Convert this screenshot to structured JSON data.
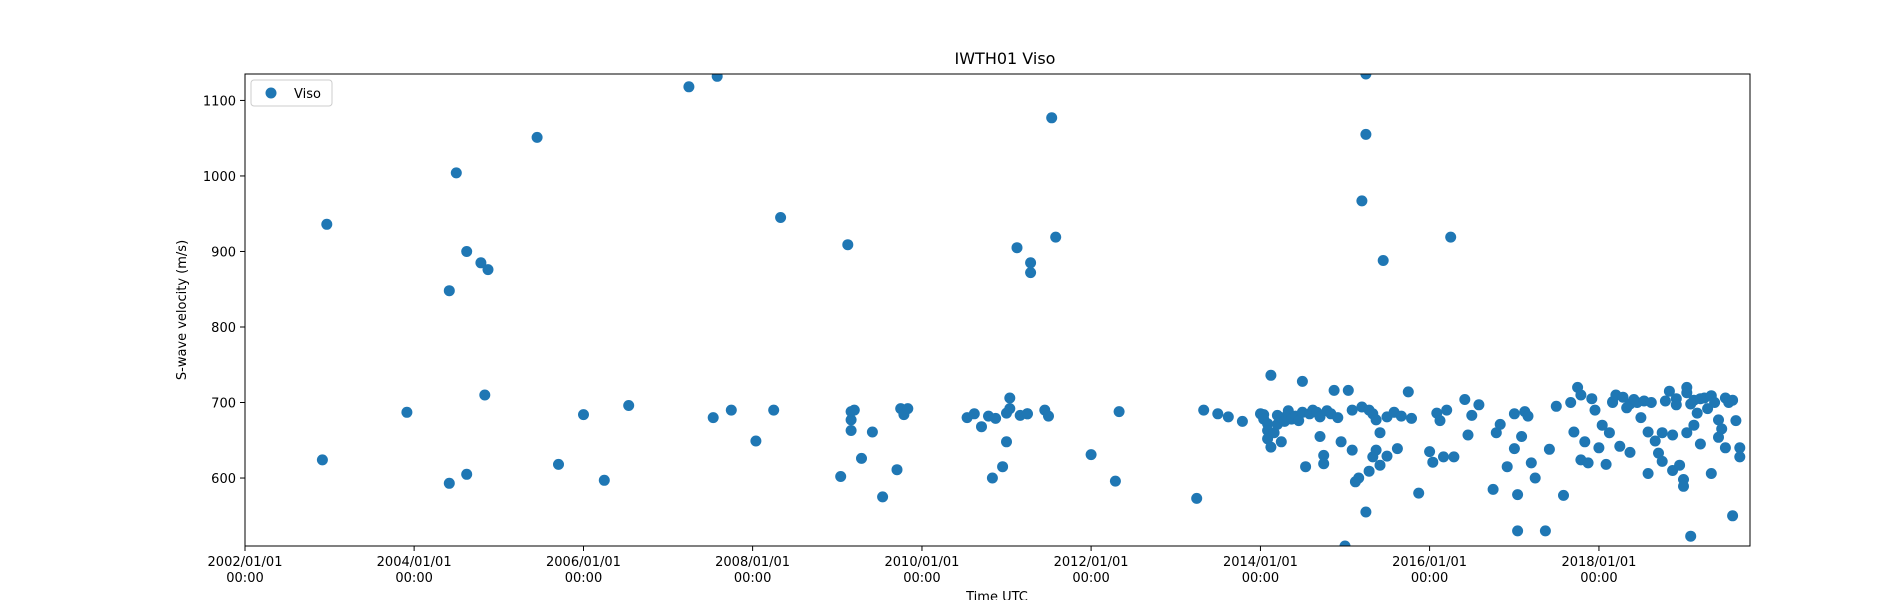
{
  "chart_data": {
    "type": "scatter",
    "title": "IWTH01 Viso",
    "xlabel": "Time UTC",
    "ylabel": "S-wave velocity (m/s)",
    "xlim": [
      "2002-01-01",
      "2019-10-15"
    ],
    "ylim": [
      510,
      1135
    ],
    "x_ticks": [
      {
        "value": "2002-01-01",
        "line1": "2002/01/01",
        "line2": "00:00"
      },
      {
        "value": "2004-01-01",
        "line1": "2004/01/01",
        "line2": "00:00"
      },
      {
        "value": "2006-01-01",
        "line1": "2006/01/01",
        "line2": "00:00"
      },
      {
        "value": "2008-01-01",
        "line1": "2008/01/01",
        "line2": "00:00"
      },
      {
        "value": "2010-01-01",
        "line1": "2010/01/01",
        "line2": "00:00"
      },
      {
        "value": "2012-01-01",
        "line1": "2012/01/01",
        "line2": "00:00"
      },
      {
        "value": "2014-01-01",
        "line1": "2014/01/01",
        "line2": "00:00"
      },
      {
        "value": "2016-01-01",
        "line1": "2016/01/01",
        "line2": "00:00"
      },
      {
        "value": "2018-01-01",
        "line1": "2018/01/01",
        "line2": "00:00"
      }
    ],
    "y_ticks": [
      600,
      700,
      800,
      900,
      1000,
      1100
    ],
    "grid": false,
    "legend": {
      "position": "top-left",
      "entries": [
        "Viso"
      ]
    },
    "color": "#1f77b4",
    "series": [
      {
        "name": "Viso",
        "points": [
          [
            "2002-12-01",
            624
          ],
          [
            "2002-12-20",
            936
          ],
          [
            "2003-12-01",
            687
          ],
          [
            "2004-06-01",
            593
          ],
          [
            "2004-06-01",
            848
          ],
          [
            "2004-07-01",
            1004
          ],
          [
            "2004-08-15",
            605
          ],
          [
            "2004-08-15",
            900
          ],
          [
            "2004-10-15",
            885
          ],
          [
            "2004-11-01",
            710
          ],
          [
            "2004-11-15",
            876
          ],
          [
            "2005-06-15",
            1051
          ],
          [
            "2005-09-15",
            618
          ],
          [
            "2006-01-01",
            684
          ],
          [
            "2006-04-01",
            597
          ],
          [
            "2006-07-15",
            696
          ],
          [
            "2007-04-01",
            1118
          ],
          [
            "2007-07-15",
            680
          ],
          [
            "2007-08-01",
            1132
          ],
          [
            "2007-10-01",
            690
          ],
          [
            "2008-01-15",
            649
          ],
          [
            "2008-04-01",
            690
          ],
          [
            "2008-05-01",
            945
          ],
          [
            "2009-01-15",
            602
          ],
          [
            "2009-02-15",
            909
          ],
          [
            "2009-03-01",
            663
          ],
          [
            "2009-03-01",
            677
          ],
          [
            "2009-03-01",
            688
          ],
          [
            "2009-03-15",
            690
          ],
          [
            "2009-04-15",
            626
          ],
          [
            "2009-06-01",
            661
          ],
          [
            "2009-07-15",
            575
          ],
          [
            "2009-09-15",
            611
          ],
          [
            "2009-10-01",
            692
          ],
          [
            "2009-10-15",
            684
          ],
          [
            "2009-11-01",
            692
          ],
          [
            "2010-07-15",
            680
          ],
          [
            "2010-08-15",
            685
          ],
          [
            "2010-09-15",
            668
          ],
          [
            "2010-10-15",
            682
          ],
          [
            "2010-11-01",
            600
          ],
          [
            "2010-11-15",
            679
          ],
          [
            "2010-12-15",
            615
          ],
          [
            "2011-01-01",
            648
          ],
          [
            "2011-01-01",
            686
          ],
          [
            "2011-01-15",
            692
          ],
          [
            "2011-01-15",
            706
          ],
          [
            "2011-02-15",
            905
          ],
          [
            "2011-03-01",
            683
          ],
          [
            "2011-04-01",
            685
          ],
          [
            "2011-04-01",
            685
          ],
          [
            "2011-04-15",
            872
          ],
          [
            "2011-04-15",
            885
          ],
          [
            "2011-06-15",
            690
          ],
          [
            "2011-07-01",
            682
          ],
          [
            "2011-07-15",
            1077
          ],
          [
            "2011-08-01",
            919
          ],
          [
            "2012-01-01",
            631
          ],
          [
            "2012-04-15",
            596
          ],
          [
            "2012-05-01",
            688
          ],
          [
            "2013-04-01",
            573
          ],
          [
            "2013-05-01",
            690
          ],
          [
            "2013-07-01",
            685
          ],
          [
            "2013-08-15",
            681
          ],
          [
            "2013-10-15",
            675
          ],
          [
            "2014-01-01",
            685
          ],
          [
            "2014-01-15",
            684
          ],
          [
            "2014-01-15",
            678
          ],
          [
            "2014-02-01",
            672
          ],
          [
            "2014-02-01",
            663
          ],
          [
            "2014-02-01",
            652
          ],
          [
            "2014-02-15",
            641
          ],
          [
            "2014-02-15",
            736
          ],
          [
            "2014-03-01",
            660
          ],
          [
            "2014-03-15",
            683
          ],
          [
            "2014-03-15",
            671
          ],
          [
            "2014-04-01",
            648
          ],
          [
            "2014-04-01",
            680
          ],
          [
            "2014-04-15",
            675
          ],
          [
            "2014-05-01",
            685
          ],
          [
            "2014-05-01",
            689
          ],
          [
            "2014-05-15",
            678
          ],
          [
            "2014-06-01",
            682
          ],
          [
            "2014-06-15",
            676
          ],
          [
            "2014-07-01",
            687
          ],
          [
            "2014-07-01",
            728
          ],
          [
            "2014-07-15",
            615
          ],
          [
            "2014-08-01",
            685
          ],
          [
            "2014-08-15",
            690
          ],
          [
            "2014-09-01",
            687
          ],
          [
            "2014-09-15",
            681
          ],
          [
            "2014-09-15",
            655
          ],
          [
            "2014-10-01",
            630
          ],
          [
            "2014-10-01",
            619
          ],
          [
            "2014-10-15",
            689
          ],
          [
            "2014-11-01",
            685
          ],
          [
            "2014-11-15",
            716
          ],
          [
            "2014-12-01",
            680
          ],
          [
            "2014-12-15",
            648
          ],
          [
            "2015-01-01",
            510
          ],
          [
            "2015-01-15",
            716
          ],
          [
            "2015-02-01",
            690
          ],
          [
            "2015-02-01",
            637
          ],
          [
            "2015-02-15",
            595
          ],
          [
            "2015-03-01",
            600
          ],
          [
            "2015-03-15",
            694
          ],
          [
            "2015-03-15",
            967
          ],
          [
            "2015-04-01",
            1055
          ],
          [
            "2015-04-01",
            1135
          ],
          [
            "2015-04-01",
            555
          ],
          [
            "2015-04-15",
            690
          ],
          [
            "2015-04-15",
            609
          ],
          [
            "2015-05-01",
            685
          ],
          [
            "2015-05-01",
            628
          ],
          [
            "2015-05-15",
            677
          ],
          [
            "2015-05-15",
            637
          ],
          [
            "2015-06-01",
            660
          ],
          [
            "2015-06-01",
            617
          ],
          [
            "2015-06-15",
            888
          ],
          [
            "2015-07-01",
            681
          ],
          [
            "2015-07-01",
            629
          ],
          [
            "2015-08-01",
            687
          ],
          [
            "2015-08-15",
            639
          ],
          [
            "2015-09-01",
            682
          ],
          [
            "2015-10-01",
            714
          ],
          [
            "2015-10-15",
            679
          ],
          [
            "2015-11-15",
            580
          ],
          [
            "2016-01-01",
            635
          ],
          [
            "2016-01-15",
            621
          ],
          [
            "2016-02-01",
            686
          ],
          [
            "2016-02-15",
            676
          ],
          [
            "2016-03-01",
            628
          ],
          [
            "2016-03-15",
            690
          ],
          [
            "2016-04-01",
            919
          ],
          [
            "2016-04-15",
            628
          ],
          [
            "2016-06-01",
            704
          ],
          [
            "2016-06-15",
            657
          ],
          [
            "2016-07-01",
            683
          ],
          [
            "2016-08-01",
            697
          ],
          [
            "2016-10-01",
            585
          ],
          [
            "2016-10-15",
            660
          ],
          [
            "2016-11-01",
            671
          ],
          [
            "2016-12-01",
            615
          ],
          [
            "2017-01-01",
            685
          ],
          [
            "2017-01-01",
            639
          ],
          [
            "2017-01-15",
            530
          ],
          [
            "2017-01-15",
            578
          ],
          [
            "2017-02-01",
            655
          ],
          [
            "2017-02-15",
            688
          ],
          [
            "2017-03-01",
            682
          ],
          [
            "2017-03-15",
            620
          ],
          [
            "2017-04-01",
            600
          ],
          [
            "2017-05-15",
            530
          ],
          [
            "2017-06-01",
            638
          ],
          [
            "2017-07-01",
            695
          ],
          [
            "2017-08-01",
            577
          ],
          [
            "2017-09-01",
            700
          ],
          [
            "2017-09-15",
            661
          ],
          [
            "2017-10-01",
            720
          ],
          [
            "2017-10-15",
            710
          ],
          [
            "2017-10-15",
            624
          ],
          [
            "2017-11-01",
            648
          ],
          [
            "2017-11-15",
            620
          ],
          [
            "2017-12-01",
            705
          ],
          [
            "2017-12-15",
            690
          ],
          [
            "2018-01-01",
            640
          ],
          [
            "2018-01-15",
            670
          ],
          [
            "2018-02-01",
            618
          ],
          [
            "2018-02-15",
            660
          ],
          [
            "2018-03-01",
            701
          ],
          [
            "2018-03-01",
            700
          ],
          [
            "2018-03-15",
            710
          ],
          [
            "2018-04-01",
            642
          ],
          [
            "2018-04-15",
            707
          ],
          [
            "2018-05-01",
            693
          ],
          [
            "2018-05-15",
            634
          ],
          [
            "2018-05-15",
            698
          ],
          [
            "2018-06-01",
            704
          ],
          [
            "2018-06-15",
            700
          ],
          [
            "2018-07-01",
            680
          ],
          [
            "2018-07-15",
            702
          ],
          [
            "2018-08-01",
            661
          ],
          [
            "2018-08-01",
            606
          ],
          [
            "2018-08-15",
            700
          ],
          [
            "2018-09-01",
            649
          ],
          [
            "2018-09-15",
            633
          ],
          [
            "2018-10-01",
            622
          ],
          [
            "2018-10-01",
            660
          ],
          [
            "2018-10-15",
            702
          ],
          [
            "2018-11-01",
            715
          ],
          [
            "2018-11-15",
            610
          ],
          [
            "2018-11-15",
            657
          ],
          [
            "2018-12-01",
            705
          ],
          [
            "2018-12-01",
            697
          ],
          [
            "2018-12-15",
            617
          ],
          [
            "2019-01-01",
            598
          ],
          [
            "2019-01-01",
            589
          ],
          [
            "2019-01-15",
            713
          ],
          [
            "2019-01-15",
            720
          ],
          [
            "2019-01-15",
            660
          ],
          [
            "2019-02-01",
            698
          ],
          [
            "2019-02-01",
            523
          ],
          [
            "2019-02-15",
            670
          ],
          [
            "2019-02-15",
            703
          ],
          [
            "2019-03-01",
            686
          ],
          [
            "2019-03-15",
            705
          ],
          [
            "2019-03-15",
            645
          ],
          [
            "2019-04-01",
            706
          ],
          [
            "2019-04-15",
            692
          ],
          [
            "2019-05-01",
            606
          ],
          [
            "2019-05-01",
            709
          ],
          [
            "2019-05-15",
            700
          ],
          [
            "2019-06-01",
            677
          ],
          [
            "2019-06-01",
            654
          ],
          [
            "2019-06-15",
            665
          ],
          [
            "2019-07-01",
            640
          ],
          [
            "2019-07-01",
            706
          ],
          [
            "2019-07-15",
            700
          ],
          [
            "2019-08-01",
            703
          ],
          [
            "2019-08-01",
            550
          ],
          [
            "2019-08-15",
            676
          ],
          [
            "2019-09-01",
            628
          ],
          [
            "2019-09-01",
            640
          ]
        ]
      }
    ]
  }
}
